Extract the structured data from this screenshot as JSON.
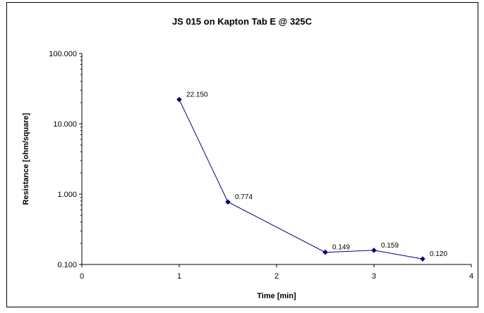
{
  "chart_data": {
    "type": "line",
    "title": "JS 015 on Kapton Tab E @ 325C",
    "xlabel": "Time [min]",
    "ylabel": "Resistance [ohm/square]",
    "xlim": [
      0,
      4
    ],
    "ylim": [
      0.1,
      100
    ],
    "y_scale": "log",
    "x_ticks": [
      0,
      1,
      2,
      3,
      4
    ],
    "x_tick_labels": [
      "0",
      "1",
      "2",
      "3",
      "4"
    ],
    "y_ticks": [
      0.1,
      1,
      10,
      100
    ],
    "y_tick_labels": [
      "0.100",
      "1.000",
      "10.000",
      "100.000"
    ],
    "grid": false,
    "legend": "none",
    "series": [
      {
        "x": [
          1,
          1.5,
          2.5,
          3,
          3.5
        ],
        "y": [
          22.15,
          0.774,
          0.149,
          0.159,
          0.12
        ],
        "data_labels": [
          "22.150",
          "0.774",
          "0.149",
          "0.159",
          "0.120"
        ],
        "color": "#000080"
      }
    ]
  }
}
